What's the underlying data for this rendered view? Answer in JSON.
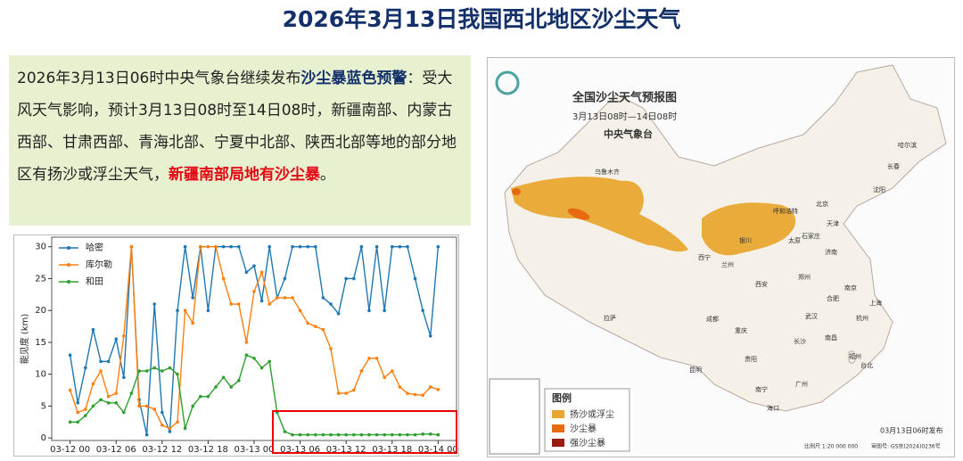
{
  "title": "2026年3月13日我国西北地区沙尘天气",
  "note": {
    "parts": [
      "2026年3月13日06时中央气象台继续发布",
      "沙尘暴蓝色预警",
      "：受大风天气影响，预计3月13日08时至14日08时，新疆南部、内蒙古西部、甘肃西部、青海北部、宁夏中北部、陕西北部等地的部分地区有扬沙或浮尘天气，",
      "新疆南部局地有沙尘暴",
      "。"
    ]
  },
  "chart_data": {
    "type": "line",
    "ylabel": "能见度 (km)",
    "x": [
      0,
      1,
      2,
      3,
      4,
      5,
      6,
      7,
      8,
      9,
      10,
      11,
      12,
      13,
      14,
      15,
      16,
      17,
      18,
      19,
      20,
      21,
      22,
      23,
      24,
      25,
      26,
      27,
      28,
      29,
      30,
      31,
      32,
      33,
      34,
      35,
      36,
      37,
      38,
      39,
      40,
      41,
      42,
      43,
      44,
      45,
      46,
      47,
      48
    ],
    "xlim": [
      -2.4,
      50.4
    ],
    "xticks": [
      {
        "value": 0,
        "label": "03-12 00"
      },
      {
        "value": 6,
        "label": "03-12 06"
      },
      {
        "value": 12,
        "label": "03-12 12"
      },
      {
        "value": 18,
        "label": "03-12 18"
      },
      {
        "value": 24,
        "label": "03-13 00"
      },
      {
        "value": 30,
        "label": "03-13 06"
      },
      {
        "value": 36,
        "label": "03-13 12"
      },
      {
        "value": 42,
        "label": "03-13 18"
      },
      {
        "value": 48,
        "label": "03-14 00"
      }
    ],
    "ylim": [
      -0.4,
      31.5
    ],
    "yticks": [
      0,
      5,
      10,
      15,
      20,
      25,
      30
    ],
    "legend": "upper left",
    "series": [
      {
        "name": "哈密",
        "color": "#1f77b4",
        "values": [
          13,
          5.5,
          11,
          17,
          12,
          12,
          15.5,
          9.5,
          30,
          6,
          0.5,
          21,
          4,
          1,
          20,
          30,
          22,
          30,
          20,
          30,
          30,
          30,
          30,
          26,
          27,
          21.5,
          30,
          22,
          25,
          30,
          30,
          30,
          30,
          22,
          21,
          19.5,
          25,
          25,
          30,
          20,
          30,
          20,
          30,
          30,
          30,
          25,
          20,
          16,
          30
        ]
      },
      {
        "name": "库尔勒",
        "color": "#ff7f0e",
        "values": [
          7.5,
          4,
          4.5,
          8.5,
          10.5,
          6.5,
          7,
          16,
          30,
          5,
          5,
          4.5,
          2,
          1.5,
          2.5,
          20,
          18,
          30,
          30,
          30,
          25,
          21,
          21,
          15,
          23,
          26,
          21,
          22,
          22,
          22,
          20,
          18,
          17.5,
          17,
          14,
          7,
          7,
          7.5,
          10.5,
          12.5,
          12.5,
          9.5,
          10.5,
          8,
          7,
          6.8,
          6.7,
          8,
          7.6
        ]
      },
      {
        "name": "和田",
        "color": "#2ca02c",
        "values": [
          2.5,
          2.5,
          3.5,
          5,
          6,
          5.5,
          5.5,
          4,
          7,
          10.5,
          10.5,
          11,
          10.5,
          11,
          10,
          1.5,
          5,
          6.5,
          6.5,
          8,
          9.5,
          8,
          9,
          13,
          12.5,
          11,
          12,
          4,
          1,
          0.5,
          0.5,
          0.5,
          0.5,
          0.5,
          0.5,
          0.5,
          0.5,
          0.5,
          0.5,
          0.5,
          0.5,
          0.5,
          0.5,
          0.5,
          0.5,
          0.5,
          0.6,
          0.6,
          0.5
        ]
      }
    ]
  },
  "map": {
    "title": "全国沙尘天气预报图",
    "subtitle": "3月13日08时—14日08时",
    "agency": "中央气象台",
    "legend": {
      "title": "图例",
      "items": [
        "扬沙或浮尘",
        "沙尘暴",
        "强沙尘暴"
      ]
    },
    "issued": "03月13日06时发布",
    "scale": "比例尺 1:20 000 000",
    "approval": "审图号: GS京(2024)0236号",
    "cities": [
      "乌鲁木齐",
      "呼和浩特",
      "北京",
      "天津",
      "银川",
      "西宁",
      "兰州",
      "太原",
      "石家庄",
      "沈阳",
      "长春",
      "哈尔滨",
      "济南",
      "郑州",
      "西安",
      "拉萨",
      "成都",
      "重庆",
      "武汉",
      "合肥",
      "南京",
      "上海",
      "杭州",
      "长沙",
      "南昌",
      "福州",
      "贵阳",
      "昆明",
      "南宁",
      "广州",
      "台北",
      "海口"
    ]
  }
}
